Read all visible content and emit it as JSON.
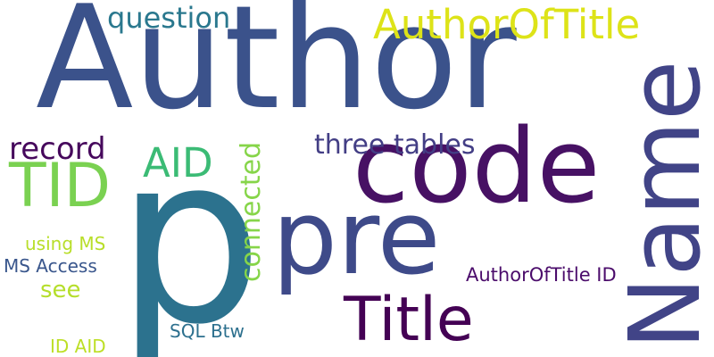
{
  "words": [
    {
      "text": "Author",
      "color": "#3b528b"
    },
    {
      "text": "p",
      "color": "#2c728e"
    },
    {
      "text": "code",
      "color": "#471164"
    },
    {
      "text": "pre",
      "color": "#3e4a89"
    },
    {
      "text": "Name",
      "color": "#414487"
    },
    {
      "text": "Title",
      "color": "#440154"
    },
    {
      "text": "AuthorOfTitle",
      "color": "#dde318"
    },
    {
      "text": "TID",
      "color": "#7ad151"
    },
    {
      "text": "AID",
      "color": "#3bbb75"
    },
    {
      "text": "question",
      "color": "#2a788e"
    },
    {
      "text": "record",
      "color": "#46085c"
    },
    {
      "text": "three tables",
      "color": "#433e85"
    },
    {
      "text": "connected",
      "color": "#86d549"
    },
    {
      "text": "AuthorOfTitle ID",
      "color": "#4b0c6b"
    },
    {
      "text": "see",
      "color": "#b5de2b"
    },
    {
      "text": "using MS",
      "color": "#b8de29"
    },
    {
      "text": "MS Access",
      "color": "#39568c"
    },
    {
      "text": "SQL Btw",
      "color": "#2d708e"
    },
    {
      "text": "ID AID",
      "color": "#bddf26"
    }
  ]
}
